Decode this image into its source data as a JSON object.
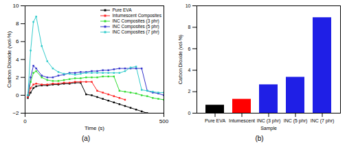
{
  "chart_data": [
    {
      "type": "line",
      "title": "(a)",
      "x_label": "Time (s)",
      "y_label": "Carbon Dioxide (vol-%)",
      "x": [
        10,
        20,
        30,
        40,
        60,
        80,
        100,
        120,
        140,
        160,
        180,
        200,
        220,
        240,
        260,
        280,
        300,
        320,
        340,
        360,
        380,
        400,
        420,
        440,
        460,
        480,
        500
      ],
      "xlim": [
        0,
        500
      ],
      "xticks": [
        0,
        500
      ],
      "ylim": [
        -2,
        10
      ],
      "yticks": [
        -2,
        0,
        2,
        4,
        6,
        8,
        10
      ],
      "grid": false,
      "legend": "upper right",
      "marker": "square",
      "line_style": "solid",
      "series": [
        {
          "name": "Pure EVA",
          "color": "#000000",
          "values": [
            -0.3,
            0.3,
            0.8,
            1.0,
            1.1,
            1.1,
            1.2,
            1.2,
            1.3,
            1.3,
            1.4,
            1.4,
            0.1,
            0,
            -0.2,
            -0.4,
            -0.6,
            -0.8,
            -1.0,
            -1.2,
            -1.4,
            -1.6,
            -1.8,
            -2.0,
            null,
            null,
            null
          ]
        },
        {
          "name": "Intumescent Composites",
          "color": "#ff2020",
          "values": [
            -0.2,
            0.8,
            1.2,
            1.3,
            1.2,
            1.2,
            1.3,
            1.3,
            1.4,
            1.4,
            1.5,
            1.5,
            1.5,
            1.5,
            0.5,
            0.3,
            0.1,
            -0.1,
            -0.3,
            -0.5,
            null,
            null,
            null,
            null,
            null,
            null,
            null
          ]
        },
        {
          "name": "INC Composites (3 phr)",
          "color": "#33dd33",
          "values": [
            0,
            1.5,
            2.5,
            2.7,
            2.0,
            1.7,
            1.6,
            1.6,
            1.7,
            1.8,
            1.9,
            1.9,
            2.0,
            2.0,
            2.0,
            2.1,
            2.1,
            2.1,
            0.5,
            0.4,
            0.3,
            0.2,
            0.0,
            -0.1,
            -0.3,
            -0.4,
            -0.5
          ]
        },
        {
          "name": "INC Composites (5 phr)",
          "color": "#3333cc",
          "values": [
            0,
            2,
            3.3,
            3.0,
            2.2,
            2.0,
            2.0,
            2.2,
            2.3,
            2.5,
            2.5,
            2.6,
            2.6,
            2.7,
            2.7,
            2.8,
            2.8,
            2.9,
            3.0,
            3.0,
            3.0,
            3.0,
            3.0,
            0.5,
            0.3,
            0.2,
            0
          ]
        },
        {
          "name": "INC Composites (7 phr)",
          "color": "#33cccc",
          "values": [
            0,
            5,
            8.2,
            8.8,
            5.5,
            3.8,
            3.0,
            2.6,
            2.4,
            2.4,
            2.3,
            2.4,
            2.5,
            2.5,
            2.5,
            2.5,
            2.5,
            2.5,
            2.5,
            2.7,
            3.1,
            3.2,
            0.6,
            0.5,
            0.4,
            0.3,
            0.3
          ]
        }
      ]
    },
    {
      "type": "bar",
      "title": "(b)",
      "x_label": "Sample",
      "y_label": "Carbon Dioxide (vol-%)",
      "categories": [
        "Pure EVA",
        "Intumescent",
        "INC (3 phr)",
        "INC (5 phr)",
        "INC (7 phr)"
      ],
      "values": [
        0.75,
        1.3,
        2.65,
        3.35,
        8.9
      ],
      "colors": [
        "#000000",
        "#ff0000",
        "#1f1fe6",
        "#1f1fe6",
        "#1f1fe6"
      ],
      "ylim": [
        0,
        10
      ],
      "yticks": [
        0,
        2,
        4,
        6,
        8,
        10
      ],
      "grid": false
    }
  ]
}
